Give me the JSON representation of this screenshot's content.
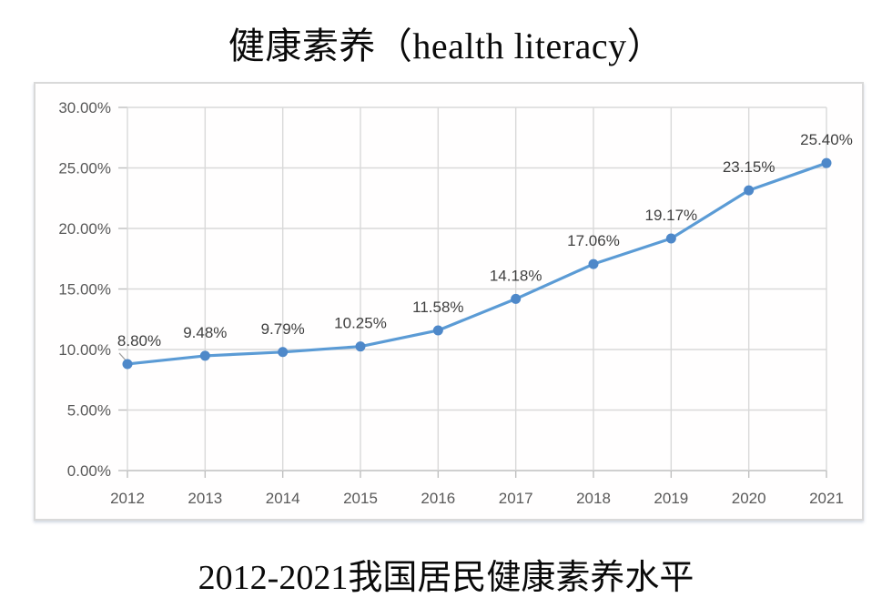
{
  "title": "健康素养（health literacy）",
  "caption": "2012-2021我国居民健康素养水平",
  "chart_data": {
    "type": "line",
    "title": "健康素养（health literacy）",
    "subtitle": "2012-2021我国居民健康素养水平",
    "categories": [
      "2012",
      "2013",
      "2014",
      "2015",
      "2016",
      "2017",
      "2018",
      "2019",
      "2020",
      "2021"
    ],
    "values": [
      8.8,
      9.48,
      9.79,
      10.25,
      11.58,
      14.18,
      17.06,
      19.17,
      23.15,
      25.4
    ],
    "point_labels": [
      "8.80%",
      "9.48%",
      "9.79%",
      "10.25%",
      "11.58%",
      "14.18%",
      "17.06%",
      "19.17%",
      "23.15%",
      "25.40%"
    ],
    "xlabel": "",
    "ylabel": "",
    "ylim": [
      0,
      30
    ],
    "ytick_step": 5,
    "ytick_labels": [
      "30.00%",
      "25.00%",
      "20.00%",
      "15.00%",
      "10.00%",
      "5.00%",
      "0.00%"
    ],
    "grid": true,
    "legend_position": "none",
    "colors": {
      "line": "#5b9bd5",
      "marker": "#4e88c9",
      "gridline": "#d9d9d9",
      "axis_line": "#bfbfbf",
      "axis_text": "#595959",
      "data_label": "#3f3f3f",
      "leader_line": "#a0a0a0",
      "chart_border": "#d9d9d9",
      "title_text": "#0a0a0a"
    }
  }
}
